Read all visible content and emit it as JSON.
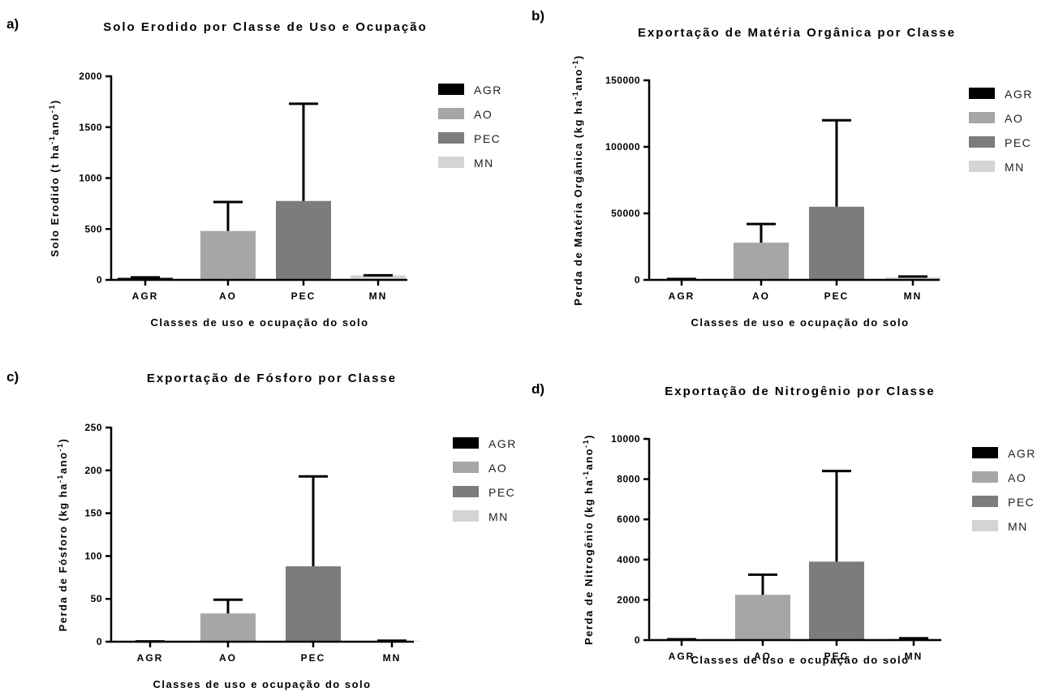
{
  "chart_data": [
    {
      "panel": "a)",
      "type": "bar",
      "title": "Solo Erodido por Classe de Uso e Ocupação",
      "xlabel": "Classes de uso e ocupação do solo",
      "ylabel": "Solo Erodido (t ha-1ano-1)",
      "ylabel_parts": [
        "Solo Erodido (t ha",
        "-1",
        "ano",
        "-1",
        ")"
      ],
      "categories": [
        "AGR",
        "AO",
        "PEC",
        "MN"
      ],
      "values": [
        20,
        480,
        775,
        45
      ],
      "error_upper": [
        25,
        765,
        1730,
        45
      ],
      "ylim": [
        0,
        2000
      ],
      "yticks": [
        0,
        500,
        1000,
        1500,
        2000
      ],
      "ytick_labels": [
        "0",
        "500",
        "1000",
        "1500",
        "2000"
      ],
      "legend": [
        "AGR",
        "AO",
        "PEC",
        "MN"
      ],
      "legend_position": "right",
      "colors": [
        "#000000",
        "#a6a6a8",
        "#7c7c7c",
        "#d4d4d4"
      ]
    },
    {
      "panel": "b)",
      "type": "bar",
      "title": "Exportação de Matéria Orgânica por Classe",
      "xlabel": "Classes de uso e ocupação do solo",
      "ylabel": "Perda de Matéria Orgânica (kg ha-1ano-1)",
      "ylabel_parts": [
        "Perda de Matéria Orgânica (kg ha",
        "-1",
        "ano",
        "-1",
        ")"
      ],
      "categories": [
        "AGR",
        "AO",
        "PEC",
        "MN"
      ],
      "values": [
        500,
        28000,
        55000,
        2000
      ],
      "error_upper": [
        700,
        42000,
        120000,
        2500
      ],
      "ylim": [
        0,
        150000
      ],
      "yticks": [
        0,
        50000,
        100000,
        150000
      ],
      "ytick_labels": [
        "0",
        "50000",
        "100000",
        "150000"
      ],
      "legend": [
        "AGR",
        "AO",
        "PEC",
        "MN"
      ],
      "legend_position": "right",
      "colors": [
        "#000000",
        "#a6a6a8",
        "#7c7c7c",
        "#d4d4d4"
      ]
    },
    {
      "panel": "c)",
      "type": "bar",
      "title": "Exportação de Fósforo por Classe",
      "xlabel": "Classes de uso e ocupação do solo",
      "ylabel": "Perda de Fósforo (kg ha-1ano-1)",
      "ylabel_parts": [
        "Perda de Fósforo (kg ha",
        "-1",
        "ano",
        "-1",
        ")"
      ],
      "categories": [
        "AGR",
        "AO",
        "PEC",
        "MN"
      ],
      "values": [
        0.2,
        33,
        88,
        0.8
      ],
      "error_upper": [
        0.3,
        49,
        193,
        1.2
      ],
      "ylim": [
        0,
        250
      ],
      "yticks": [
        0,
        50,
        100,
        150,
        200,
        250
      ],
      "ytick_labels": [
        "0",
        "50",
        "100",
        "150",
        "200",
        "250"
      ],
      "legend": [
        "AGR",
        "AO",
        "PEC",
        "MN"
      ],
      "legend_position": "right",
      "colors": [
        "#000000",
        "#a6a6a8",
        "#7c7c7c",
        "#d4d4d4"
      ]
    },
    {
      "panel": "d)",
      "type": "bar",
      "title": "Exportação de Nitrogênio por Classe",
      "xlabel": "Classes de uso e ocupação do solo",
      "ylabel": "Perda de Nitrogênio (kg ha-1ano-1)",
      "ylabel_parts": [
        "Perda de Nitrogênio (kg ha",
        "-1",
        "ano",
        "-1",
        ")"
      ],
      "categories": [
        "AGR",
        "AO",
        "PEC",
        "MN"
      ],
      "values": [
        20,
        2250,
        3900,
        60
      ],
      "error_upper": [
        40,
        3250,
        8400,
        90
      ],
      "ylim": [
        0,
        10000
      ],
      "yticks": [
        0,
        2000,
        4000,
        6000,
        8000,
        10000
      ],
      "ytick_labels": [
        "0",
        "2000",
        "4000",
        "6000",
        "8000",
        "10000"
      ],
      "legend": [
        "AGR",
        "AO",
        "PEC",
        "MN"
      ],
      "legend_position": "right",
      "colors": [
        "#000000",
        "#a6a6a8",
        "#7c7c7c",
        "#d4d4d4"
      ]
    }
  ]
}
